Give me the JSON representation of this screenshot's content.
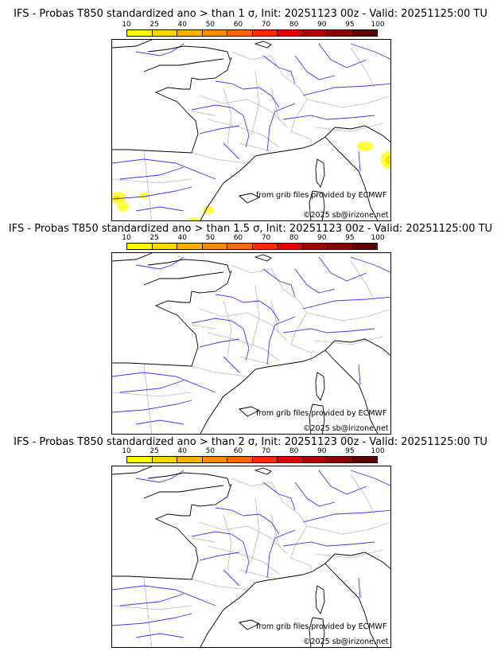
{
  "colorbar": {
    "ticks": [
      "10",
      "25",
      "40",
      "50",
      "60",
      "70",
      "80",
      "90",
      "95",
      "100"
    ],
    "colors": [
      "#ffff00",
      "#ffd700",
      "#ffb000",
      "#ff8c00",
      "#ff6a00",
      "#ff2a00",
      "#dd0000",
      "#a80000",
      "#880000",
      "#600000"
    ]
  },
  "panels": [
    {
      "title": "IFS - Probas T850  standardized ano > than 1 σ, Init: 20251123 00z - Valid: 20251125:00 TU"
    },
    {
      "title": "IFS - Probas T850  standardized ano > than 1.5 σ, Init: 20251123 00z - Valid: 20251125:00 TU"
    },
    {
      "title": "IFS - Probas T850  standardized ano > than 2 σ, Init: 20251123 00z - Valid: 20251125:00 TU"
    }
  ],
  "credits": {
    "source": "from grib files provided by ECMWF",
    "copyright": "©2025 sb@irizone.net"
  }
}
